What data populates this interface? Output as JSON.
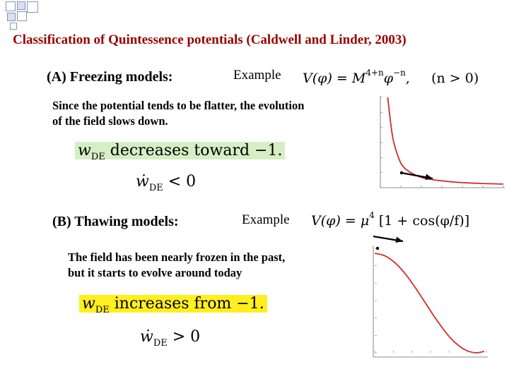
{
  "slide": {
    "title": "Classification of Quintessence potentials (Caldwell and Linder, 2003)",
    "freezing": {
      "heading": "(A) Freezing models:",
      "example_label": "Example",
      "potential_lhs": "V(φ) = M",
      "potential_exp": "4+n",
      "potential_mid": "φ",
      "potential_exp2": "−n",
      "potential_tail": ",     (n > 0)",
      "description_line1": "Since the potential tends to be flatter, the evolution",
      "description_line2": "of the field slows down.",
      "highlight_w": "w",
      "highlight_sub": "DE",
      "highlight_text": " decreases toward −1.",
      "rate_w": "ẇ",
      "rate_sub": "DE",
      "rate_rel": " < 0"
    },
    "thawing": {
      "heading": "(B)  Thawing models:",
      "example_label": "Example",
      "potential_lhs": "V(φ) = μ",
      "potential_exp": "4",
      "potential_tail": " [1 + cos(φ/f)]",
      "description_line1": "The field has been nearly frozen in the past,",
      "description_line2": "but it starts to evolve around today",
      "highlight_w": "w",
      "highlight_sub": "DE",
      "highlight_text": " increases from −1.",
      "rate_w": "ẇ",
      "rate_sub": "DE",
      "rate_rel": " > 0"
    }
  },
  "colors": {
    "title": "#990000",
    "curve": "#d42a2a",
    "green_highlight": "#d6eec4",
    "yellow_highlight": "#ffef1f",
    "deco_square": "#7f95b8"
  },
  "chart_data": [
    {
      "type": "line",
      "series": [
        {
          "values": [
            [
              0.06,
              8.0
            ],
            [
              0.1,
              4.5
            ],
            [
              0.15,
              2.6
            ],
            [
              0.2,
              1.7
            ],
            [
              0.3,
              1.05
            ],
            [
              0.4,
              0.75
            ],
            [
              0.6,
              0.5
            ],
            [
              0.8,
              0.38
            ],
            [
              1.0,
              0.32
            ]
          ]
        }
      ],
      "xlim": [
        0,
        1
      ],
      "ylim": [
        0,
        8
      ],
      "grid": false
    },
    {
      "type": "line",
      "series": [
        {
          "values": [
            [
              0,
              2.0
            ],
            [
              0.1,
              1.95
            ],
            [
              0.2,
              1.81
            ],
            [
              0.3,
              1.59
            ],
            [
              0.4,
              1.31
            ],
            [
              0.5,
              1.0
            ],
            [
              0.6,
              0.69
            ],
            [
              0.7,
              0.41
            ],
            [
              0.8,
              0.19
            ],
            [
              0.9,
              0.05
            ],
            [
              1.0,
              0.0
            ],
            [
              1.08,
              0.03
            ]
          ]
        }
      ],
      "xlim": [
        0,
        1.1
      ],
      "ylim": [
        0,
        2.1
      ],
      "grid": false
    }
  ]
}
